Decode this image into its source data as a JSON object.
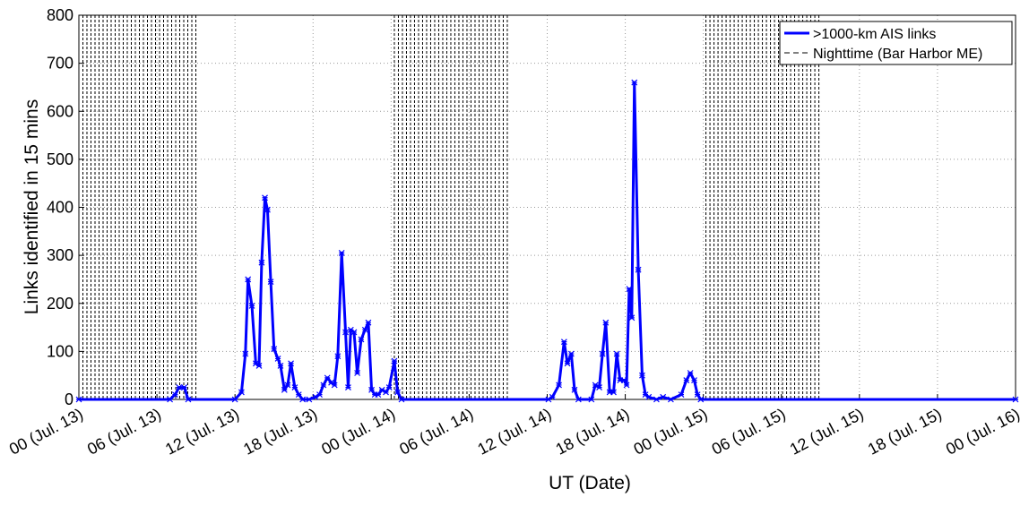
{
  "chart_data": {
    "type": "line",
    "xlabel": "UT (Date)",
    "ylabel": "Links identified in 15 mins",
    "xlim": [
      0,
      72
    ],
    "ylim": [
      0,
      800
    ],
    "xticks": [
      {
        "value": 0,
        "label": "00 (Jul. 13)"
      },
      {
        "value": 6,
        "label": "06 (Jul. 13)"
      },
      {
        "value": 12,
        "label": "12 (Jul. 13)"
      },
      {
        "value": 18,
        "label": "18 (Jul. 13)"
      },
      {
        "value": 24,
        "label": "00 (Jul. 14)"
      },
      {
        "value": 30,
        "label": "06 (Jul. 14)"
      },
      {
        "value": 36,
        "label": "12 (Jul. 14)"
      },
      {
        "value": 42,
        "label": "18 (Jul. 14)"
      },
      {
        "value": 48,
        "label": "00 (Jul. 15)"
      },
      {
        "value": 54,
        "label": "06 (Jul. 15)"
      },
      {
        "value": 60,
        "label": "12 (Jul. 15)"
      },
      {
        "value": 66,
        "label": "18 (Jul. 15)"
      },
      {
        "value": 72,
        "label": "00 (Jul. 16)"
      }
    ],
    "yticks": [
      0,
      100,
      200,
      300,
      400,
      500,
      600,
      700,
      800
    ],
    "grid": true,
    "legend": "upper right",
    "x": [
      0,
      7.0,
      7.4,
      7.7,
      8.1,
      8.4,
      12.0,
      12.5,
      12.8,
      13.0,
      13.3,
      13.6,
      13.85,
      14.05,
      14.3,
      14.5,
      14.75,
      15.0,
      15.3,
      15.5,
      15.8,
      16.05,
      16.3,
      16.6,
      16.9,
      17.2,
      17.7,
      18.2,
      18.5,
      18.8,
      19.1,
      19.4,
      19.65,
      19.9,
      20.2,
      20.5,
      20.7,
      20.9,
      21.15,
      21.4,
      21.7,
      22.0,
      22.25,
      22.5,
      22.75,
      23.0,
      23.3,
      23.6,
      23.85,
      24.25,
      24.5,
      24.8,
      36.1,
      36.4,
      36.9,
      37.3,
      37.55,
      37.85,
      38.1,
      38.4,
      39.4,
      39.7,
      40.0,
      40.25,
      40.5,
      40.8,
      41.1,
      41.35,
      41.6,
      41.9,
      42.1,
      42.3,
      42.5,
      42.7,
      43.0,
      43.3,
      43.55,
      43.8,
      44.4,
      44.9,
      45.5,
      46.3,
      46.7,
      47.0,
      47.3,
      47.55,
      47.8,
      72
    ],
    "series": [
      {
        "name": ">1000-km AIS links",
        "color": "#0000ff",
        "values": [
          0,
          0,
          10,
          25,
          25,
          0,
          0,
          15,
          95,
          250,
          195,
          75,
          70,
          285,
          420,
          395,
          245,
          105,
          85,
          70,
          20,
          30,
          75,
          25,
          10,
          0,
          0,
          5,
          10,
          30,
          45,
          35,
          30,
          90,
          305,
          140,
          25,
          145,
          140,
          55,
          125,
          145,
          160,
          20,
          10,
          10,
          20,
          15,
          25,
          80,
          15,
          0,
          0,
          5,
          30,
          120,
          75,
          95,
          20,
          0,
          0,
          30,
          25,
          95,
          160,
          15,
          15,
          95,
          40,
          40,
          30,
          230,
          170,
          660,
          270,
          50,
          10,
          5,
          0,
          5,
          0,
          10,
          40,
          55,
          40,
          10,
          0,
          0
        ]
      }
    ],
    "nighttime": {
      "name": "Nighttime (Bar Harbor ME)",
      "color": "#000000",
      "intervals": [
        [
          0,
          9.1
        ],
        [
          24.25,
          33.1
        ],
        [
          48.2,
          57.1
        ]
      ]
    }
  }
}
